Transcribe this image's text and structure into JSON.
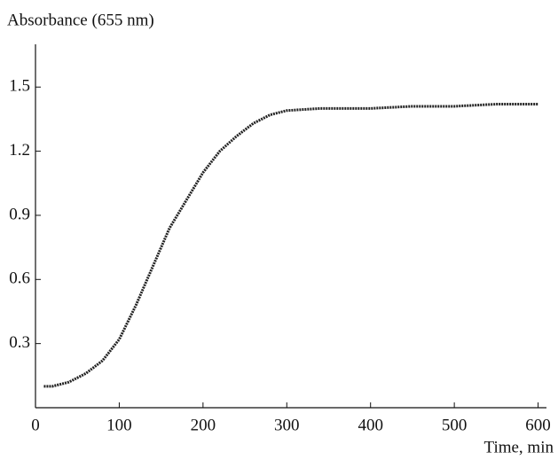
{
  "chart_data": {
    "type": "line",
    "y_label": "Absorbance (655 nm)",
    "x_label": "Time, min",
    "x": [
      10,
      20,
      40,
      60,
      80,
      100,
      120,
      140,
      160,
      180,
      200,
      220,
      240,
      260,
      280,
      300,
      340,
      400,
      450,
      500,
      550,
      600
    ],
    "series": [
      {
        "color": "#222222",
        "values": [
          0.1,
          0.1,
          0.12,
          0.16,
          0.22,
          0.32,
          0.48,
          0.66,
          0.84,
          0.97,
          1.1,
          1.2,
          1.27,
          1.33,
          1.37,
          1.39,
          1.4,
          1.4,
          1.41,
          1.41,
          1.42,
          1.42
        ]
      }
    ],
    "xlim": [
      0,
      610
    ],
    "ylim": [
      0,
      1.7
    ],
    "xticks": [
      0,
      100,
      200,
      300,
      400,
      500,
      600
    ],
    "yticks": [
      0.3,
      0.6,
      0.9,
      1.2,
      1.5
    ],
    "grid": false
  }
}
